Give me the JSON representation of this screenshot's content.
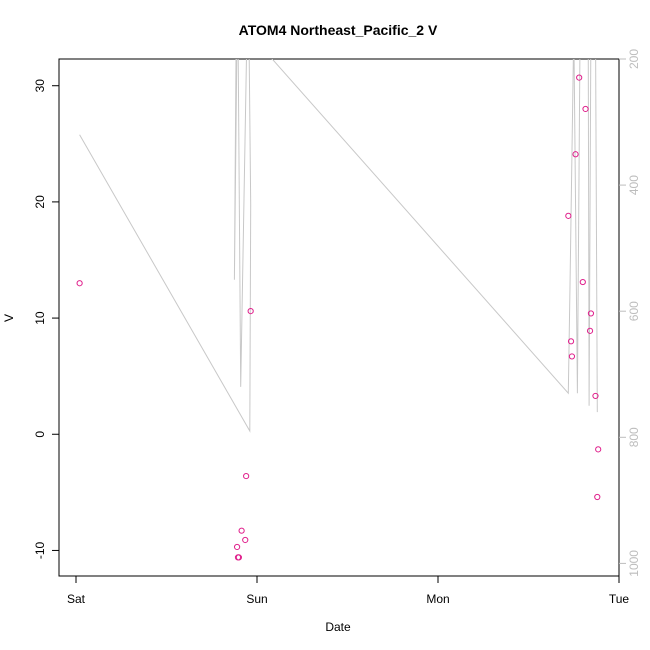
{
  "chart_data": {
    "type": "scatter",
    "title": "ATOM4 Northeast_Pacific_2 V",
    "xlabel": "Date",
    "ylabel": "V",
    "x_ticks": [
      {
        "label": "Sat",
        "day": 0
      },
      {
        "label": "Sun",
        "day": 1
      },
      {
        "label": "Mon",
        "day": 2
      },
      {
        "label": "Tue",
        "day": 3
      }
    ],
    "xlim_days": [
      0,
      3
    ],
    "ylim": [
      -12.2,
      32.3
    ],
    "y_ticks": [
      -10,
      0,
      10,
      20,
      30
    ],
    "y2_ticks": [
      200,
      400,
      600,
      800,
      1000
    ],
    "y2lim": [
      1020,
      200
    ],
    "grid": false,
    "legend": "none",
    "colors": {
      "points": "#e0208c",
      "line": "#c8c8c8",
      "right_axis": "#bdbdbd"
    },
    "series": [
      {
        "type": "points",
        "x_days": [
          0.02,
          0.89,
          0.895,
          0.9,
          0.915,
          0.935,
          0.94,
          0.965,
          2.72,
          2.735,
          2.74,
          2.76,
          2.78,
          2.8,
          2.815,
          2.84,
          2.845,
          2.87,
          2.88,
          2.885
        ],
        "values": [
          13.0,
          -9.7,
          -10.6,
          -10.6,
          -8.3,
          -9.1,
          -3.6,
          10.6,
          18.8,
          8.0,
          6.7,
          24.1,
          30.7,
          13.1,
          28.0,
          8.9,
          10.4,
          3.3,
          -5.4,
          -1.3
        ]
      },
      {
        "type": "line",
        "axis": "right",
        "x_days": [
          0.02,
          0.96,
          0.965,
          0.955,
          0.945,
          0.91,
          0.895,
          0.885,
          0.875,
          0.89,
          0.905,
          0.915,
          0.93,
          2.72,
          2.73,
          2.75,
          2.77,
          2.785,
          2.79,
          2.81,
          2.82,
          2.83,
          2.835,
          2.845,
          2.86,
          2.87,
          2.88
        ],
        "values": [
          320,
          790,
          430,
          150,
          150,
          720,
          150,
          150,
          550,
          150,
          150,
          150,
          150,
          730,
          550,
          150,
          730,
          150,
          150,
          150,
          150,
          150,
          750,
          150,
          150,
          150,
          760
        ]
      }
    ]
  }
}
